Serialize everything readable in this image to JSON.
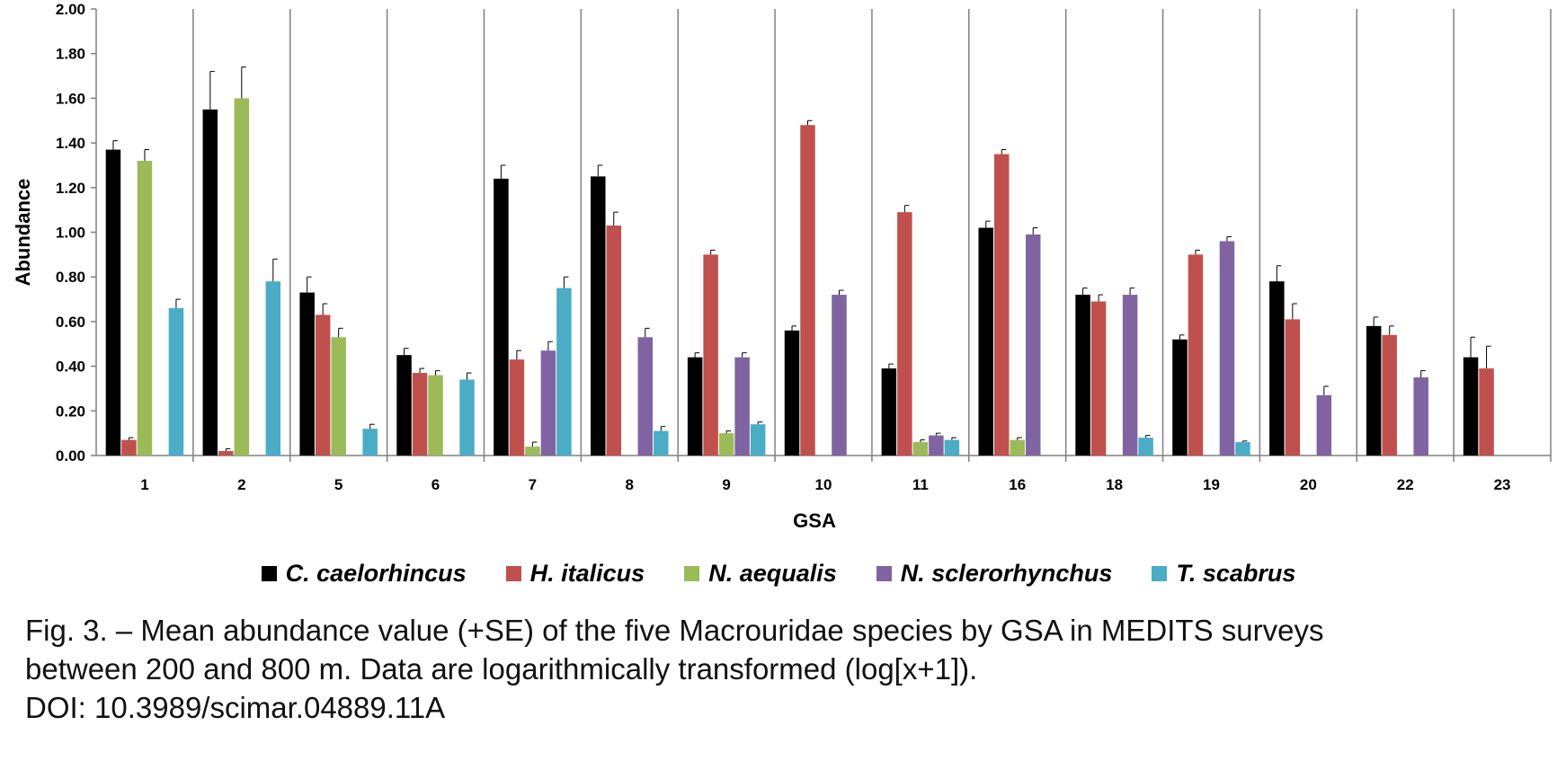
{
  "chart_data": {
    "type": "bar",
    "xlabel": "GSA",
    "ylabel": "Abundance",
    "ylim": [
      0,
      2.0
    ],
    "yticks": [
      "0.00",
      "0.20",
      "0.40",
      "0.60",
      "0.80",
      "1.00",
      "1.20",
      "1.40",
      "1.60",
      "1.80",
      "2.00"
    ],
    "grid": "vertical separators between categories",
    "legend_position": "bottom",
    "categories": [
      "1",
      "2",
      "5",
      "6",
      "7",
      "8",
      "9",
      "10",
      "11",
      "16",
      "18",
      "19",
      "20",
      "22",
      "23"
    ],
    "series": [
      {
        "name": "C. caelorhincus",
        "color": "#000000",
        "values": [
          1.37,
          1.55,
          0.73,
          0.45,
          1.24,
          1.25,
          0.44,
          0.56,
          0.39,
          1.02,
          0.72,
          0.52,
          0.78,
          0.58,
          0.44
        ],
        "se": [
          0.04,
          0.17,
          0.07,
          0.03,
          0.06,
          0.05,
          0.02,
          0.02,
          0.02,
          0.03,
          0.03,
          0.02,
          0.07,
          0.04,
          0.09
        ]
      },
      {
        "name": "H. italicus",
        "color": "#C0504D",
        "values": [
          0.07,
          0.02,
          0.63,
          0.37,
          0.43,
          1.03,
          0.9,
          1.48,
          1.09,
          1.35,
          0.69,
          0.9,
          0.61,
          0.54,
          0.39
        ],
        "se": [
          0.01,
          0.01,
          0.05,
          0.02,
          0.04,
          0.06,
          0.02,
          0.02,
          0.03,
          0.02,
          0.03,
          0.02,
          0.07,
          0.04,
          0.1
        ]
      },
      {
        "name": "N. aequalis",
        "color": "#9BBB59",
        "values": [
          1.32,
          1.6,
          0.53,
          0.36,
          0.04,
          null,
          0.1,
          null,
          0.06,
          0.07,
          null,
          null,
          null,
          null,
          null
        ],
        "se": [
          0.05,
          0.14,
          0.04,
          0.02,
          0.02,
          null,
          0.01,
          null,
          0.01,
          0.01,
          null,
          null,
          null,
          null,
          null
        ]
      },
      {
        "name": "N. sclerorhynchus",
        "color": "#8064A2",
        "values": [
          null,
          null,
          null,
          null,
          0.47,
          0.53,
          0.44,
          0.72,
          0.09,
          0.99,
          0.72,
          0.96,
          0.27,
          0.35,
          0.0
        ],
        "se": [
          null,
          null,
          null,
          null,
          0.04,
          0.04,
          0.02,
          0.02,
          0.01,
          0.03,
          0.03,
          0.02,
          0.04,
          0.03,
          0.0
        ]
      },
      {
        "name": "T. scabrus",
        "color": "#4BACC6",
        "values": [
          0.66,
          0.78,
          0.12,
          0.34,
          0.75,
          0.11,
          0.14,
          null,
          0.07,
          null,
          0.08,
          0.06,
          null,
          null,
          null
        ],
        "se": [
          0.04,
          0.1,
          0.02,
          0.03,
          0.05,
          0.02,
          0.01,
          null,
          0.01,
          null,
          0.01,
          0.005,
          null,
          null,
          null
        ]
      }
    ]
  },
  "caption": {
    "line1": "Fig. 3. – Mean abundance value (+SE) of the five Macrouridae species by GSA in MEDITS surveys",
    "line2": "between 200 and 800 m. Data are logarithmically transformed (log[x+1]).",
    "line3": "DOI: 10.3989/scimar.04889.11A"
  }
}
